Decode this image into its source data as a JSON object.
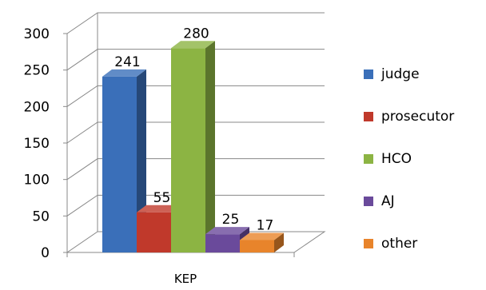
{
  "chart_data": {
    "type": "bar",
    "categories": [
      "KEP"
    ],
    "series": [
      {
        "name": "judge",
        "values": [
          241
        ],
        "color": "#3A6FB9"
      },
      {
        "name": "prosecutor",
        "values": [
          55
        ],
        "color": "#C0392B"
      },
      {
        "name": "HCO",
        "values": [
          280
        ],
        "color": "#8CB443"
      },
      {
        "name": "AJ",
        "values": [
          25
        ],
        "color": "#6A4A9B"
      },
      {
        "name": "other",
        "values": [
          17
        ],
        "color": "#E8842B"
      }
    ],
    "data_labels": [
      "241",
      "55",
      "280",
      "25",
      "17"
    ],
    "ylim": [
      0,
      300
    ],
    "yticks": [
      "0",
      "50",
      "100",
      "150",
      "200",
      "250",
      "300"
    ],
    "grid": true,
    "legend_position": "right",
    "style": "3d-clustered-column"
  }
}
